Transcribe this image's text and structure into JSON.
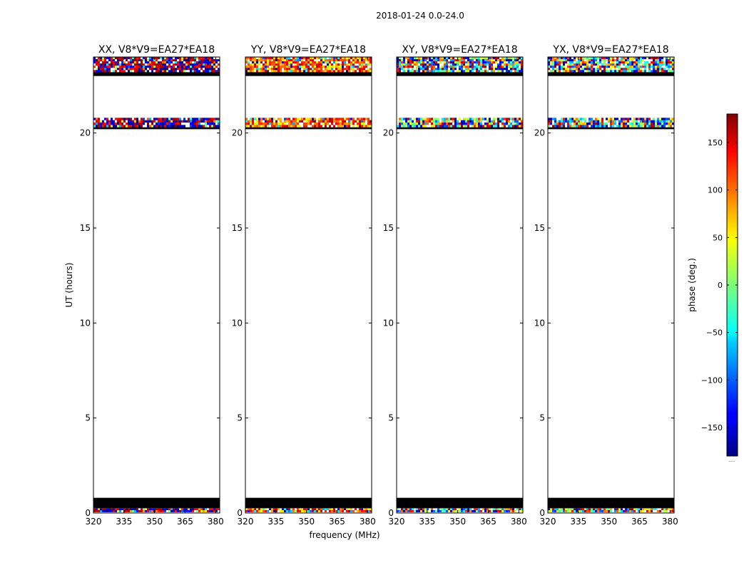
{
  "chart_data": {
    "type": "heatmap",
    "title": "2018-01-24 0.0-24.0",
    "xlabel": "frequency (MHz)",
    "ylabel": "UT (hours)",
    "xlim": [
      320,
      382
    ],
    "ylim": [
      0,
      24
    ],
    "xticks": [
      320,
      335,
      350,
      365,
      380
    ],
    "yticks": [
      0,
      5,
      10,
      15,
      20
    ],
    "flagged_color": "#000000",
    "empty_color": "#ffffff",
    "colorbar": {
      "label": "phase (deg.)",
      "range": [
        -180,
        180
      ],
      "ticks": [
        150,
        100,
        50,
        0,
        -50,
        -100,
        -150
      ],
      "tick_labels": [
        "150",
        "100",
        "50",
        "0",
        "−50",
        "−100",
        "−150"
      ],
      "colormap": "jet",
      "footnote": "....."
    },
    "panels": [
      {
        "title": "XX, V8*V9=EA27*EA18",
        "pol": "XX",
        "dominant": "red-blue",
        "data_bands_ut": [
          [
            0.05,
            0.25
          ],
          [
            20.3,
            20.8
          ],
          [
            23.2,
            24.0
          ]
        ],
        "flagged_bands_ut": [
          [
            0.25,
            0.8
          ],
          [
            20.2,
            20.3
          ],
          [
            23.0,
            23.2
          ]
        ]
      },
      {
        "title": "YY, V8*V9=EA27*EA18",
        "pol": "YY",
        "dominant": "yellow-red",
        "data_bands_ut": [
          [
            0.05,
            0.25
          ],
          [
            20.3,
            20.8
          ],
          [
            23.2,
            24.0
          ]
        ],
        "flagged_bands_ut": [
          [
            0.25,
            0.8
          ],
          [
            20.2,
            20.3
          ],
          [
            23.0,
            23.2
          ]
        ]
      },
      {
        "title": "XY, V8*V9=EA27*EA18",
        "pol": "XY",
        "dominant": "noise",
        "data_bands_ut": [
          [
            0.05,
            0.25
          ],
          [
            20.3,
            20.8
          ],
          [
            23.2,
            24.0
          ]
        ],
        "flagged_bands_ut": [
          [
            0.25,
            0.8
          ],
          [
            20.2,
            20.3
          ],
          [
            23.0,
            23.2
          ]
        ]
      },
      {
        "title": "YX, V8*V9=EA27*EA18",
        "pol": "YX",
        "dominant": "noise",
        "data_bands_ut": [
          [
            0.05,
            0.25
          ],
          [
            20.3,
            20.8
          ],
          [
            23.2,
            24.0
          ]
        ],
        "flagged_bands_ut": [
          [
            0.25,
            0.8
          ],
          [
            20.2,
            20.3
          ],
          [
            23.0,
            23.2
          ]
        ]
      }
    ]
  }
}
